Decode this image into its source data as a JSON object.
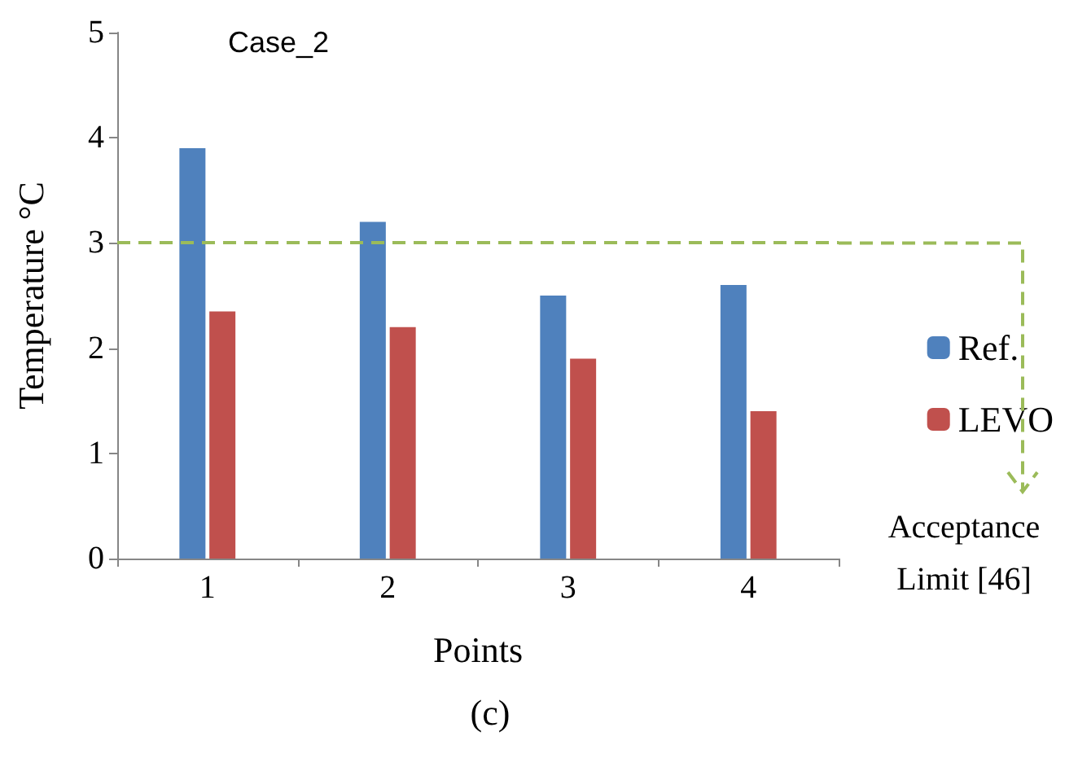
{
  "chart_data": {
    "type": "bar",
    "title": "Case_2",
    "xlabel": "Points",
    "ylabel": "Temperature °C",
    "annotations": [
      "(c)"
    ],
    "categories": [
      "1",
      "2",
      "3",
      "4"
    ],
    "series": [
      {
        "name": "Ref.",
        "color": "#4f81bd",
        "values": [
          3.9,
          3.2,
          2.5,
          2.6
        ]
      },
      {
        "name": "LEVO",
        "color": "#c0504d",
        "values": [
          2.35,
          2.2,
          1.9,
          1.4
        ]
      }
    ],
    "ylim": [
      0,
      5
    ],
    "yticks": [
      0,
      1,
      2,
      3,
      4,
      5
    ],
    "grid": false,
    "legend": "right",
    "ref_lines": [
      {
        "axis": "y",
        "value": 3,
        "label": "Acceptance Limit [46]",
        "color": "#9bbb59",
        "line_style": "dashed"
      }
    ]
  }
}
